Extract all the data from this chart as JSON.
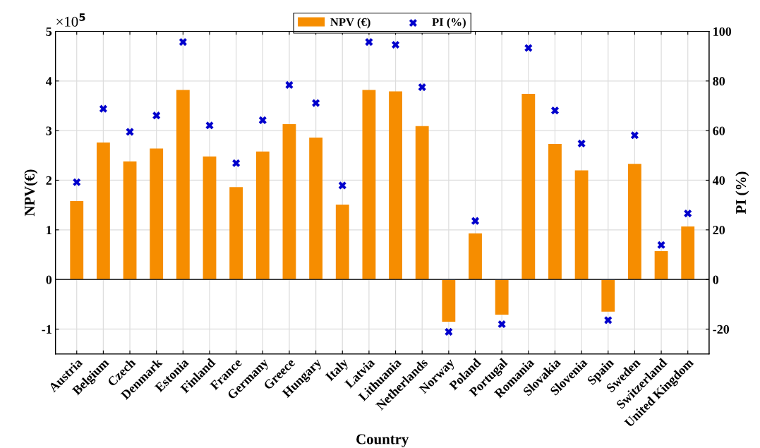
{
  "chart_data": {
    "type": "bar",
    "xlabel": "Country",
    "ylabel": "NPV(€)",
    "y2label": "PI (%)",
    "categories": [
      "Austria",
      "Belgium",
      "Czech",
      "Denmark",
      "Estonia",
      "Finland",
      "France",
      "Germany",
      "Greece",
      "Hungary",
      "Italy",
      "Latvia",
      "Lithuania",
      "Netherlands",
      "Norway",
      "Poland",
      "Portugal",
      "Romania",
      "Slovakia",
      "Slovenia",
      "Spain",
      "Sweden",
      "Switzerland",
      "United Kingdom"
    ],
    "series": [
      {
        "name": "NPV (€)",
        "color": "#f68d00",
        "values": [
          1.58,
          2.76,
          2.38,
          2.64,
          3.82,
          2.48,
          1.86,
          2.58,
          3.13,
          2.86,
          1.51,
          3.82,
          3.79,
          3.09,
          -0.85,
          0.93,
          -0.71,
          3.74,
          2.73,
          2.2,
          -0.65,
          2.33,
          0.57,
          1.07
        ]
      },
      {
        "name": "PI (%)",
        "type": "scatter",
        "axis": "y2",
        "color": "#0000cc",
        "marker": "cross",
        "values": [
          39.2,
          68.8,
          59.5,
          66.1,
          95.7,
          62.1,
          46.9,
          64.2,
          78.4,
          71.1,
          37.9,
          95.7,
          94.6,
          77.5,
          -21.1,
          23.6,
          -18.0,
          93.3,
          68.1,
          54.8,
          -16.4,
          58.1,
          13.9,
          26.6
        ]
      }
    ],
    "ylim": [
      -1.5,
      5
    ],
    "yticks": [
      -1,
      0,
      1,
      2,
      3,
      4,
      5
    ],
    "y2lim": [
      -30,
      100
    ],
    "y2ticks": [
      -20,
      0,
      20,
      40,
      60,
      80,
      100
    ],
    "annotations": [
      "×10$^{5}$"
    ],
    "grid": true,
    "legend": "top"
  }
}
